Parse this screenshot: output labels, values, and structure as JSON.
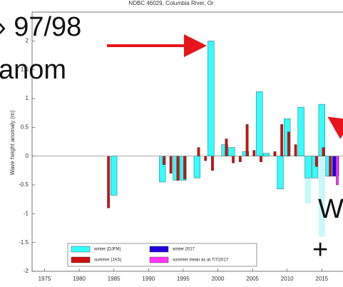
{
  "chart_data": {
    "type": "bar",
    "title": "NDBC 46029, Columbia River, Or",
    "y_label": "Wave height anomaly (m)",
    "xlim": [
      1973.2,
      2020
    ],
    "ylim": [
      -2,
      2.5
    ],
    "xticks": [
      1975,
      1980,
      1985,
      1990,
      1995,
      2000,
      2005,
      2010,
      2015
    ],
    "yticks": [
      -2,
      -1.5,
      -1,
      -0.5,
      0,
      0.5,
      1,
      1.5,
      2
    ],
    "series": [
      {
        "color": "#c8f8f8",
        "x": [
          2013,
          2015
        ],
        "values": [
          -0.82,
          -1.4
        ]
      },
      {
        "name": "winter (DJFM)",
        "color": "#33ffff",
        "x": [
          1985,
          1992,
          1994,
          1995,
          1997,
          1999,
          2001,
          2002,
          2004,
          2006,
          2007,
          2009,
          2010,
          2012,
          2013,
          2014,
          2015,
          2016
        ],
        "values": [
          -0.68,
          -0.45,
          -0.42,
          -0.42,
          -0.38,
          2.0,
          0.2,
          0.15,
          0.08,
          1.12,
          0.05,
          -0.57,
          0.65,
          0.85,
          -0.38,
          -0.38,
          0.9,
          -0.35
        ]
      },
      {
        "name": "summer (JAS)",
        "color": "#cc1111",
        "x": [
          1984,
          1992,
          1993,
          1994,
          1995,
          1997,
          1998,
          1999,
          2001,
          2002,
          2003,
          2004,
          2005,
          2006,
          2008,
          2009,
          2010,
          2011,
          2014,
          2015,
          2016
        ],
        "values": [
          -0.9,
          -0.15,
          -0.3,
          -0.42,
          -0.4,
          0.15,
          -0.08,
          -0.25,
          0.3,
          -0.12,
          -0.1,
          0.55,
          0.1,
          -0.1,
          0.08,
          0.55,
          0.42,
          0.2,
          -0.18,
          0.15,
          -0.35
        ]
      },
      {
        "name": "winter 2017",
        "color": "#2200dd",
        "x": [
          2017
        ],
        "values": [
          -0.35
        ]
      },
      {
        "name": "summer mean as at 7/7/2017",
        "color": "#ff33ff",
        "x": [
          2017
        ],
        "values": [
          -0.5
        ]
      }
    ],
    "annotations": [
      "› 97/98",
      "anom",
      "W",
      "+"
    ]
  }
}
